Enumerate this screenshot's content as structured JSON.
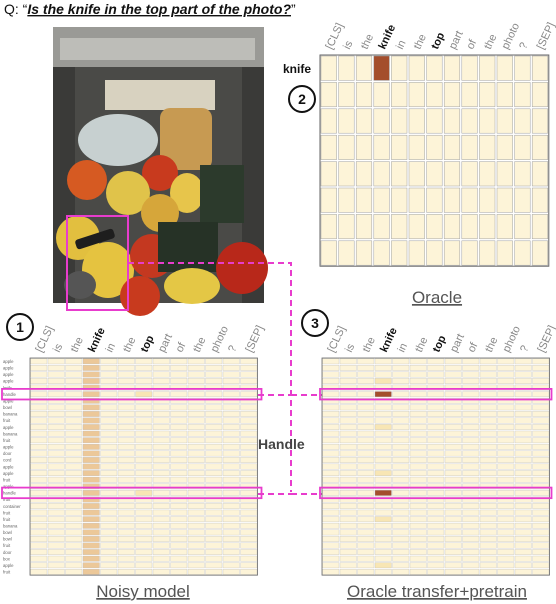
{
  "question": {
    "prefix": "Q: “",
    "text": "Is the knife in the top part of the photo?",
    "suffix": "”"
  },
  "tokens": [
    "[CLS]",
    "is",
    "the",
    "knife",
    "in",
    "the",
    "top",
    "part",
    "of",
    "the",
    "photo",
    "?",
    "[SEP]"
  ],
  "bold_tokens": [
    "knife",
    "top"
  ],
  "colors": {
    "cell_low": "#fdf4d8",
    "cell_faint": "#f8e6b4",
    "cell_mid": "#ecc899",
    "cell_high": "#a44e2c",
    "highlight": "#e83ccd",
    "cell_border": "#666666"
  },
  "panels": {
    "oracle": {
      "number": "2",
      "caption": "Oracle",
      "row_label": "knife",
      "rows": 8,
      "knife_row_values": [
        0.05,
        0.04,
        0.03,
        0.95,
        0.05,
        0.04,
        0.05,
        0.05,
        0.04,
        0.05,
        0.05,
        0.04,
        0.04
      ],
      "other_rows_level": 0.06
    },
    "noisy": {
      "number": "1",
      "caption": "Noisy model",
      "row_labels": [
        "apple",
        "apple",
        "apple",
        "apple",
        "knife",
        "handle",
        "apple",
        "bowl",
        "banana",
        "fruit",
        "apple",
        "banana",
        "fruit",
        "apple",
        "door",
        "cord",
        "apple",
        "apple",
        "fruit",
        "apple",
        "handle",
        "fruit",
        "container",
        "fruit",
        "fruit",
        "banana",
        "bowl",
        "bowl",
        "fruit",
        "door",
        "box",
        "apple",
        "fruit"
      ],
      "handle_rows": [
        5,
        20
      ]
    },
    "oracle_transfer": {
      "number": "3",
      "caption": "Oracle transfer+pretrain",
      "handle_rows": [
        5,
        20
      ]
    }
  },
  "handle_label": "Handle"
}
